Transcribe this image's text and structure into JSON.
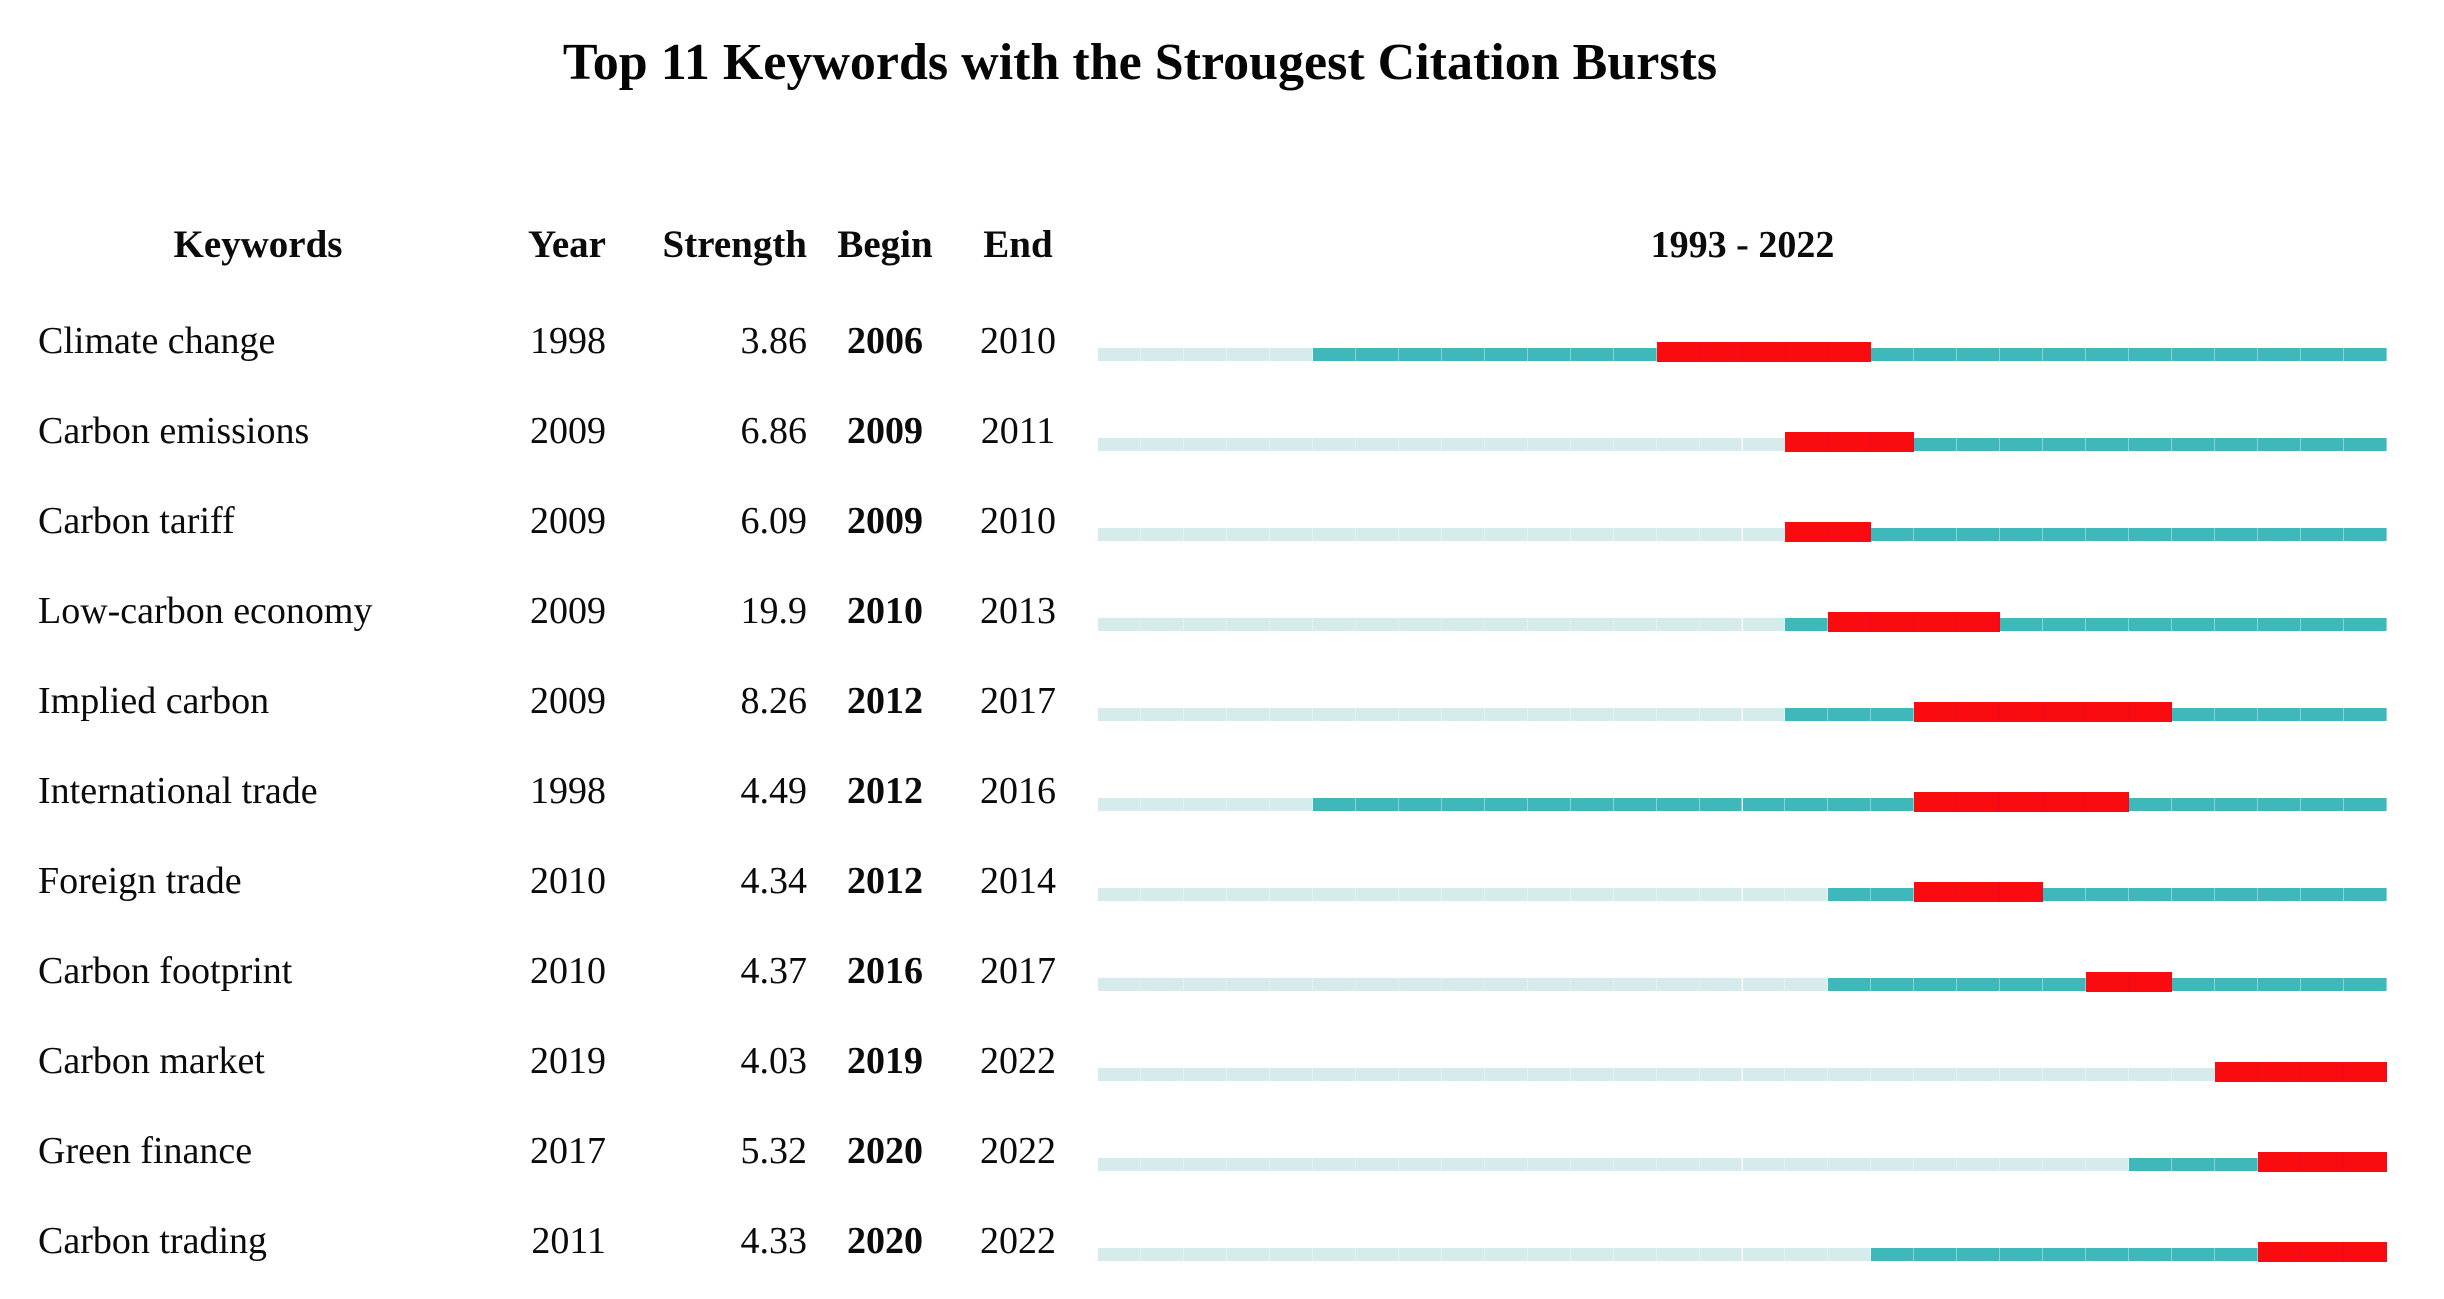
{
  "colors": {
    "pre_appearance_segment": "#d5ebec",
    "active_segment": "#3fb8bc",
    "burst_segment": "#f90b10",
    "text": "#0b0b0b",
    "background": "#ffffff"
  },
  "chart_data": {
    "type": "table",
    "title": "Top 11 Keywords with the Strougest Citation Bursts",
    "columns": {
      "keywords": "Keywords",
      "year": "Year",
      "strength": "Strength",
      "begin": "Begin",
      "end": "End"
    },
    "timeline_label": "1993 - 2022",
    "timeline_range": [
      1993,
      2022
    ],
    "timeline_segment_meaning": {
      "light": "years before keyword first appearance",
      "dark": "years keyword active",
      "red": "citation burst period (Begin to End)"
    },
    "rows": [
      {
        "keyword": "Climate change",
        "year": 1998,
        "strength": "3.86",
        "begin": 2006,
        "end": 2010
      },
      {
        "keyword": "Carbon emissions",
        "year": 2009,
        "strength": "6.86",
        "begin": 2009,
        "end": 2011
      },
      {
        "keyword": "Carbon tariff",
        "year": 2009,
        "strength": "6.09",
        "begin": 2009,
        "end": 2010
      },
      {
        "keyword": "Low-carbon economy",
        "year": 2009,
        "strength": "19.9",
        "begin": 2010,
        "end": 2013
      },
      {
        "keyword": "Implied carbon",
        "year": 2009,
        "strength": "8.26",
        "begin": 2012,
        "end": 2017
      },
      {
        "keyword": "International trade",
        "year": 1998,
        "strength": "4.49",
        "begin": 2012,
        "end": 2016
      },
      {
        "keyword": "Foreign trade",
        "year": 2010,
        "strength": "4.34",
        "begin": 2012,
        "end": 2014
      },
      {
        "keyword": "Carbon footprint",
        "year": 2010,
        "strength": "4.37",
        "begin": 2016,
        "end": 2017
      },
      {
        "keyword": "Carbon market",
        "year": 2019,
        "strength": "4.03",
        "begin": 2019,
        "end": 2022
      },
      {
        "keyword": "Green finance",
        "year": 2017,
        "strength": "5.32",
        "begin": 2020,
        "end": 2022
      },
      {
        "keyword": "Carbon trading",
        "year": 2011,
        "strength": "4.33",
        "begin": 2020,
        "end": 2022
      }
    ]
  }
}
